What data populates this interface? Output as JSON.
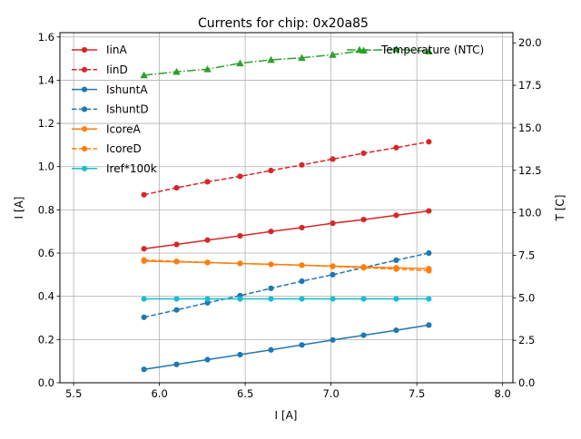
{
  "chart_data": {
    "type": "line",
    "title": "Currents for chip: 0x20a85",
    "xlabel": "I [A]",
    "ylabel": "I [A]",
    "y2label": "T [C]",
    "xlim": [
      5.42,
      8.06
    ],
    "ylim": [
      0.0,
      1.62
    ],
    "y2lim": [
      0.0,
      20.6
    ],
    "xticks": [
      5.5,
      6.0,
      6.5,
      7.0,
      7.5,
      8.0
    ],
    "xtick_labels": [
      "5.5",
      "6.0",
      "6.5",
      "7.0",
      "7.5",
      "8.0"
    ],
    "yticks": [
      0.0,
      0.2,
      0.4,
      0.6,
      0.8,
      1.0,
      1.2,
      1.4,
      1.6
    ],
    "ytick_labels": [
      "0.0",
      "0.2",
      "0.4",
      "0.6",
      "0.8",
      "1.0",
      "1.2",
      "1.4",
      "1.6"
    ],
    "y2ticks": [
      0.0,
      2.5,
      5.0,
      7.5,
      10.0,
      12.5,
      15.0,
      17.5,
      20.0
    ],
    "y2tick_labels": [
      "0.0",
      "2.5",
      "5.0",
      "7.5",
      "10.0",
      "12.5",
      "15.0",
      "17.5",
      "20.0"
    ],
    "grid": true,
    "legend_left": "upper-left",
    "legend_right": "upper-right",
    "x": [
      5.91,
      6.1,
      6.28,
      6.47,
      6.65,
      6.83,
      7.01,
      7.19,
      7.38,
      7.57
    ],
    "series": [
      {
        "name": "IinA",
        "color": "#d62728",
        "dash": "solid",
        "marker": "circle",
        "axis": "left",
        "values": [
          0.62,
          0.64,
          0.66,
          0.68,
          0.7,
          0.718,
          0.738,
          0.755,
          0.775,
          0.795
        ]
      },
      {
        "name": "IinD",
        "color": "#d62728",
        "dash": "dashed",
        "marker": "circle",
        "axis": "left",
        "values": [
          0.87,
          0.902,
          0.93,
          0.955,
          0.982,
          1.008,
          1.035,
          1.062,
          1.088,
          1.115
        ]
      },
      {
        "name": "IshuntA",
        "color": "#1f77b4",
        "dash": "solid",
        "marker": "circle",
        "axis": "left",
        "values": [
          0.062,
          0.085,
          0.107,
          0.13,
          0.152,
          0.175,
          0.198,
          0.22,
          0.243,
          0.267
        ]
      },
      {
        "name": "IshuntD",
        "color": "#1f77b4",
        "dash": "dashed",
        "marker": "circle",
        "axis": "left",
        "values": [
          0.303,
          0.337,
          0.37,
          0.403,
          0.437,
          0.47,
          0.5,
          0.533,
          0.567,
          0.6
        ]
      },
      {
        "name": "IcoreA",
        "color": "#ff7f0e",
        "dash": "solid",
        "marker": "circle",
        "axis": "left",
        "values": [
          0.563,
          0.56,
          0.556,
          0.552,
          0.548,
          0.544,
          0.54,
          0.536,
          0.532,
          0.528
        ]
      },
      {
        "name": "IcoreD",
        "color": "#ff7f0e",
        "dash": "dashed",
        "marker": "circle",
        "axis": "left",
        "values": [
          0.568,
          0.562,
          0.557,
          0.552,
          0.548,
          0.544,
          0.538,
          0.532,
          0.526,
          0.518
        ]
      },
      {
        "name": "Iref*100k",
        "color": "#17becf",
        "dash": "solid",
        "marker": "circle",
        "axis": "left",
        "values": [
          0.388,
          0.388,
          0.388,
          0.388,
          0.388,
          0.388,
          0.388,
          0.388,
          0.388,
          0.388
        ]
      },
      {
        "name": "Temperature (NTC)",
        "color": "#2ca02c",
        "dash": "dashdot",
        "marker": "triangle",
        "axis": "right",
        "values": [
          18.1,
          18.3,
          18.45,
          18.8,
          19.0,
          19.12,
          19.3,
          19.55,
          19.62,
          19.5
        ]
      }
    ]
  }
}
